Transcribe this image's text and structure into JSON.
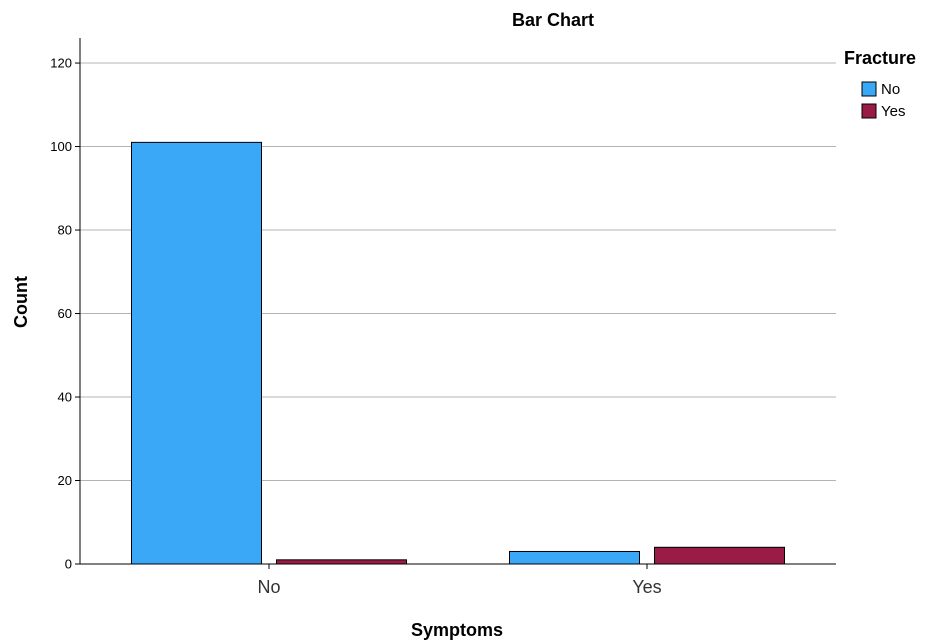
{
  "chart_data": {
    "type": "bar",
    "title": "Bar Chart",
    "xlabel": "Symptoms",
    "ylabel": "Count",
    "categories": [
      "No",
      "Yes"
    ],
    "series": [
      {
        "name": "No",
        "values": [
          101,
          3
        ],
        "color": "#3aa8f7"
      },
      {
        "name": "Yes",
        "values": [
          1,
          4
        ],
        "color": "#9b1b47"
      }
    ],
    "ylim": [
      0,
      126
    ],
    "yticks": [
      0,
      20,
      40,
      60,
      80,
      100,
      120
    ],
    "grid": true,
    "legend": {
      "title": "Fracture",
      "placement": "top-right"
    }
  }
}
